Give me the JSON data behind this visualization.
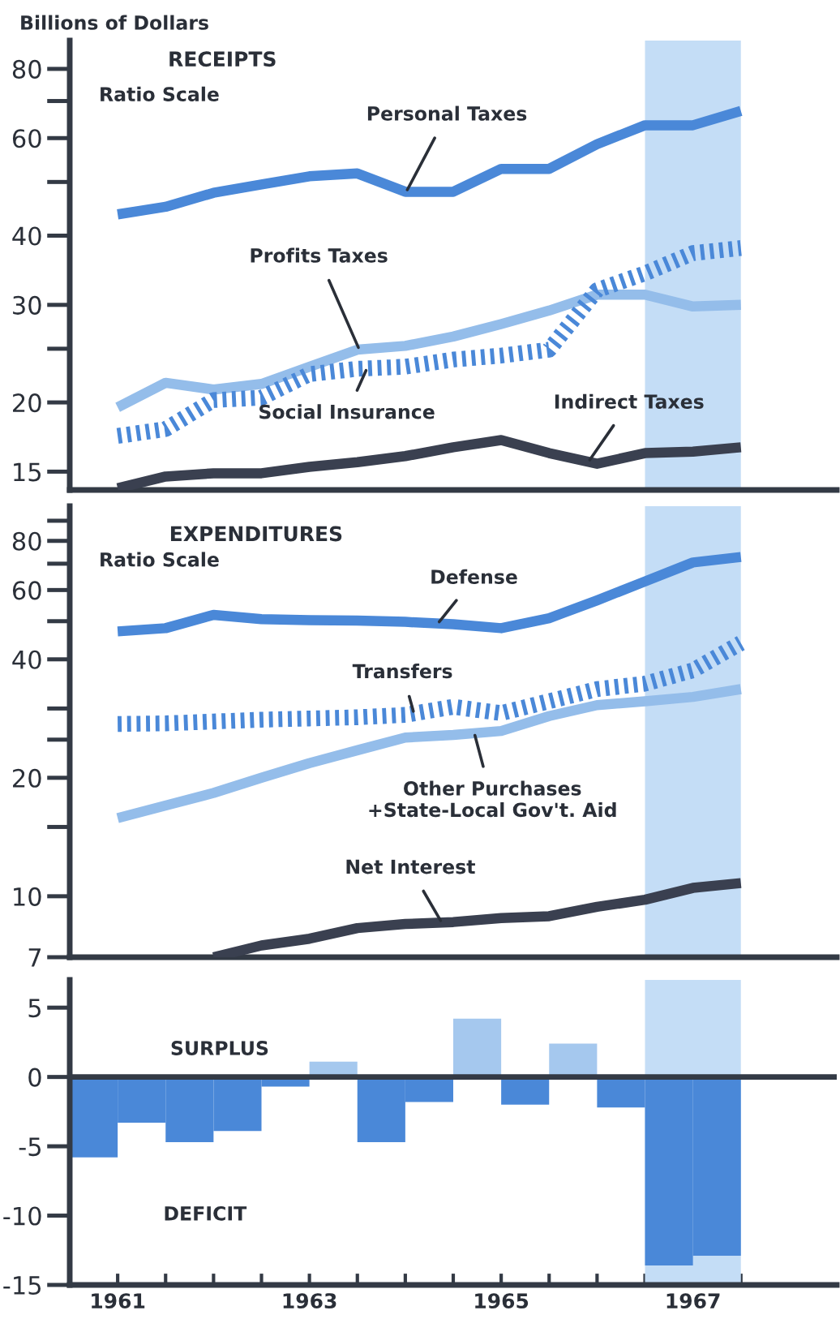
{
  "chart_data": [
    {
      "type": "line",
      "title": "RECEIPTS",
      "ylabel": "Billions of Dollars",
      "annotations": [
        "Ratio Scale"
      ],
      "log": true,
      "x": [
        1961.5,
        1962.0,
        1962.5,
        1963.0,
        1963.5,
        1964.0,
        1964.5,
        1965.0,
        1965.5,
        1966.0,
        1966.5,
        1967.0,
        1967.5,
        1968.0
      ],
      "series": [
        {
          "name": "Personal Taxes",
          "color": "#4a88d8",
          "line_style": "solid",
          "values": [
            43.7,
            45.1,
            47.8,
            49.5,
            51.2,
            51.8,
            48.0,
            48.0,
            52.8,
            52.8,
            58.5,
            63.3,
            63.3,
            67.2
          ]
        },
        {
          "name": "Profits Taxes",
          "color": "#94bdea",
          "line_style": "solid",
          "values": [
            19.6,
            21.7,
            21.1,
            21.6,
            23.2,
            24.9,
            25.3,
            26.3,
            27.7,
            29.3,
            31.3,
            31.3,
            29.8,
            30.0
          ]
        },
        {
          "name": "Social Insurance",
          "color": "#4a88d8",
          "line_style": "dotted",
          "values": [
            17.4,
            17.9,
            20.2,
            20.4,
            22.5,
            23.0,
            23.2,
            23.9,
            24.3,
            24.9,
            31.9,
            34.2,
            37.2,
            38.0
          ]
        },
        {
          "name": "Indirect Taxes",
          "color": "#3a4050",
          "line_style": "solid",
          "values": [
            14.0,
            14.7,
            14.9,
            14.9,
            15.3,
            15.6,
            16.0,
            16.6,
            17.1,
            16.2,
            15.5,
            16.2,
            16.3,
            16.6
          ]
        }
      ],
      "xlim": [
        1961,
        1969
      ],
      "ylim": [
        13.9,
        90
      ],
      "yticks": [
        15,
        20,
        {
          "value": 25,
          "label": null
        },
        30,
        40,
        {
          "value": 50,
          "label": null
        },
        60,
        {
          "value": 70,
          "label": null
        },
        80
      ],
      "tick_labels": "y",
      "bands": [
        {
          "axis": "x",
          "from": 1967,
          "to": 1968,
          "color": "#c4ddf6"
        }
      ]
    },
    {
      "type": "line",
      "title": "EXPENDITURES",
      "annotations": [
        "Ratio Scale"
      ],
      "log": true,
      "x": [
        1961.5,
        1962.0,
        1962.5,
        1963.0,
        1963.5,
        1964.0,
        1964.5,
        1965.0,
        1965.5,
        1966.0,
        1966.5,
        1967.0,
        1967.5,
        1968.0
      ],
      "series": [
        {
          "name": "Defense",
          "color": "#4a88d8",
          "line_style": "solid",
          "values": [
            47.1,
            48.0,
            51.9,
            50.6,
            50.3,
            50.2,
            49.8,
            49.1,
            48.0,
            50.9,
            56.5,
            63.1,
            70.5,
            72.8
          ]
        },
        {
          "name": "Transfers",
          "color": "#4a88d8",
          "line_style": "dotted",
          "values": [
            27.4,
            27.5,
            27.8,
            28.1,
            28.3,
            28.5,
            28.9,
            30.3,
            29.2,
            31.3,
            33.6,
            34.7,
            37.5,
            44.0
          ]
        },
        {
          "name": "Other Purchases\n+State-Local Gov't. Aid",
          "color": "#94bdea",
          "line_style": "solid",
          "values": [
            15.8,
            17.0,
            18.3,
            20.0,
            21.8,
            23.5,
            25.3,
            25.7,
            26.3,
            28.7,
            30.6,
            31.3,
            32.1,
            33.6
          ]
        },
        {
          "name": "Net Interest",
          "color": "#3a4050",
          "line_style": "solid",
          "values": [
            null,
            null,
            7.0,
            7.5,
            7.8,
            8.3,
            8.5,
            8.6,
            8.8,
            8.9,
            9.4,
            9.8,
            10.5,
            10.8
          ]
        }
      ],
      "xlim": [
        1961,
        1969
      ],
      "ylim": [
        7,
        98
      ],
      "yticks": [
        7,
        10,
        {
          "value": 15,
          "label": null
        },
        20,
        {
          "value": 25,
          "label": null
        },
        {
          "value": 30,
          "label": null
        },
        40,
        {
          "value": 50,
          "label": null
        },
        60,
        {
          "value": 70,
          "label": null
        },
        80,
        {
          "value": 90,
          "label": null
        }
      ],
      "tick_labels": "y",
      "bands": [
        {
          "axis": "x",
          "from": 1967,
          "to": 1968,
          "color": "#c4ddf6"
        }
      ]
    },
    {
      "type": "bar",
      "annotations": [
        "SURPLUS",
        "DEFICIT"
      ],
      "x": [
        1961.25,
        1961.75,
        1962.25,
        1962.75,
        1963.25,
        1963.75,
        1964.25,
        1964.75,
        1965.25,
        1965.75,
        1966.25,
        1966.75,
        1967.25,
        1967.75
      ],
      "values": [
        -5.8,
        -3.3,
        -4.7,
        -3.9,
        -0.7,
        1.1,
        -4.7,
        -1.8,
        4.2,
        -2.0,
        2.4,
        -2.2,
        -13.6,
        -12.9
      ],
      "colors": [
        "#4a88d8",
        "#4a88d8",
        "#4a88d8",
        "#4a88d8",
        "#4a88d8",
        "#a5c8ee",
        "#4a88d8",
        "#4a88d8",
        "#a5c8ee",
        "#4a88d8",
        "#a5c8ee",
        "#4a88d8",
        "#4a88d8",
        "#4a88d8"
      ],
      "xlim": [
        1961,
        1969
      ],
      "ylim": [
        -15,
        7
      ],
      "yticks": [
        -15,
        -10,
        -5,
        0,
        5
      ],
      "xticks": [
        {
          "value": 1961.5,
          "label": "1961"
        },
        {
          "value": 1962,
          "label": null
        },
        {
          "value": 1962.5,
          "label": null
        },
        {
          "value": 1963,
          "label": null
        },
        {
          "value": 1963.5,
          "label": "1963"
        },
        {
          "value": 1964,
          "label": null
        },
        {
          "value": 1964.5,
          "label": null
        },
        {
          "value": 1965,
          "label": null
        },
        {
          "value": 1965.5,
          "label": "1965"
        },
        {
          "value": 1966,
          "label": null
        },
        {
          "value": 1966.5,
          "label": null
        },
        {
          "value": 1967,
          "label": null
        },
        {
          "value": 1967.5,
          "label": "1967"
        },
        {
          "value": 1968,
          "label": null
        }
      ],
      "ref_lines": [
        {
          "axis": "y",
          "value": 0,
          "color": "#333a45"
        }
      ],
      "bands": [
        {
          "axis": "x",
          "from": 1967,
          "to": 1968,
          "color": "#c4ddf6"
        }
      ]
    }
  ]
}
